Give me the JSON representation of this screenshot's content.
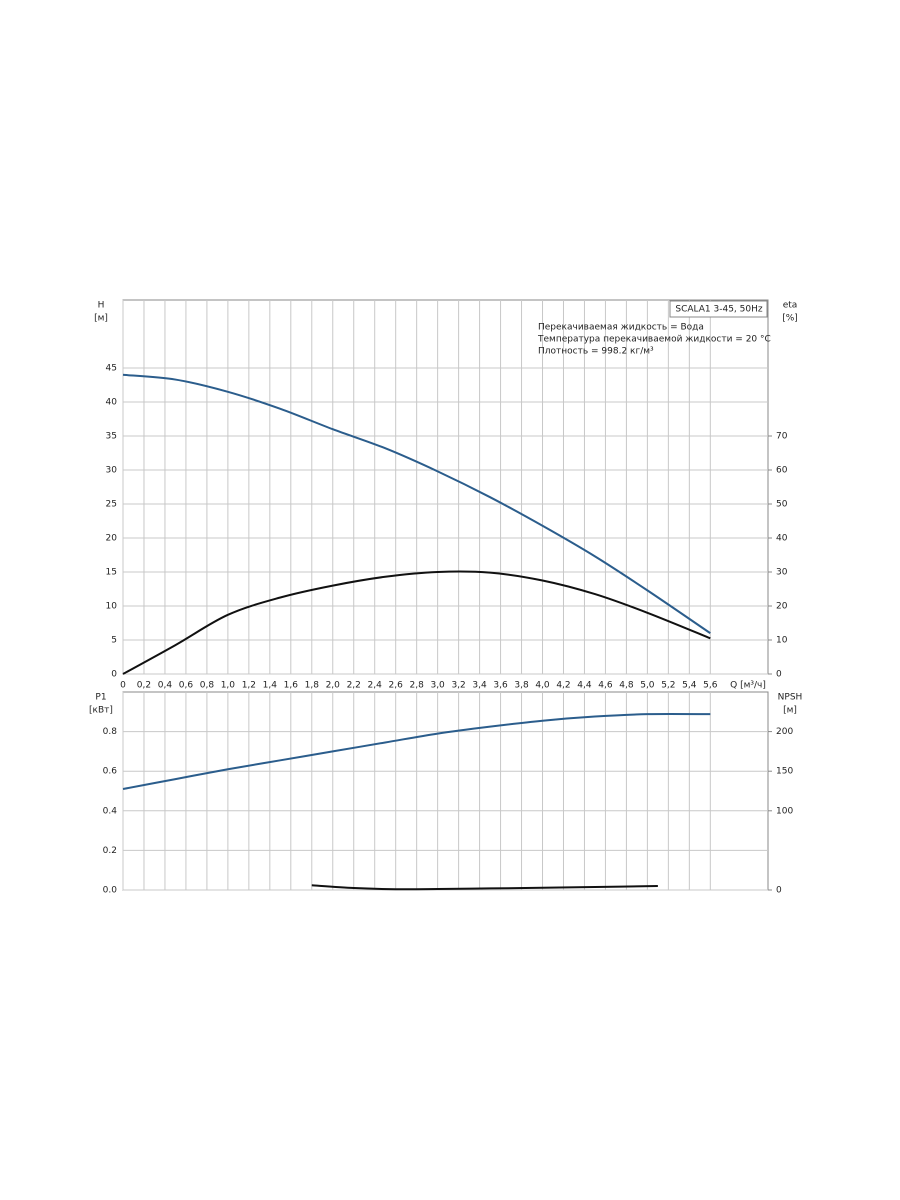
{
  "chart_data": [
    {
      "type": "line",
      "title": "SCALA1 3-45, 50Hz",
      "notes": [
        "Перекачиваемая жидкость = Вода",
        "Температура перекачиваемой жидкости = 20 °C",
        "Плотность = 998.2 кг/м³"
      ],
      "y_label": "H",
      "y_unit": "[м]",
      "y2_label": "eta",
      "y2_unit": "[%]",
      "x_label": "Q [м³/ч]",
      "xlim": [
        0,
        6.15
      ],
      "xticks": [
        0,
        {
          "value": 0.2,
          "label": "0,2"
        },
        {
          "value": 0.4,
          "label": "0,4"
        },
        {
          "value": 0.6,
          "label": "0,6"
        },
        {
          "value": 0.8,
          "label": "0,8"
        },
        {
          "value": 1.0,
          "label": "1,0"
        },
        {
          "value": 1.2,
          "label": "1,2"
        },
        {
          "value": 1.4,
          "label": "1,4"
        },
        {
          "value": 1.6,
          "label": "1,6"
        },
        {
          "value": 1.8,
          "label": "1,8"
        },
        {
          "value": 2.0,
          "label": "2,0"
        },
        {
          "value": 2.2,
          "label": "2,2"
        },
        {
          "value": 2.4,
          "label": "2,4"
        },
        {
          "value": 2.6,
          "label": "2,6"
        },
        {
          "value": 2.8,
          "label": "2,8"
        },
        {
          "value": 3.0,
          "label": "3,0"
        },
        {
          "value": 3.2,
          "label": "3,2"
        },
        {
          "value": 3.4,
          "label": "3,4"
        },
        {
          "value": 3.6,
          "label": "3,6"
        },
        {
          "value": 3.8,
          "label": "3,8"
        },
        {
          "value": 4.0,
          "label": "4,0"
        },
        {
          "value": 4.2,
          "label": "4,2"
        },
        {
          "value": 4.4,
          "label": "4,4"
        },
        {
          "value": 4.6,
          "label": "4,6"
        },
        {
          "value": 4.8,
          "label": "4,8"
        },
        {
          "value": 5.0,
          "label": "5,0"
        },
        {
          "value": 5.2,
          "label": "5,2"
        },
        {
          "value": 5.4,
          "label": "5,4"
        },
        {
          "value": 5.6,
          "label": "5,6"
        }
      ],
      "ylim": [
        0,
        55
      ],
      "yticks": [
        0,
        5,
        10,
        15,
        20,
        25,
        30,
        35,
        40,
        45
      ],
      "y2lim": [
        0,
        110
      ],
      "y2ticks": [
        0,
        10,
        20,
        30,
        40,
        50,
        60,
        70
      ],
      "grid": true,
      "x": [
        0,
        0.5,
        1.0,
        1.5,
        2.0,
        2.5,
        3.0,
        3.5,
        4.0,
        4.5,
        5.0,
        5.6
      ],
      "series": [
        {
          "name": "H",
          "color": "#2b5d8c",
          "values": [
            44,
            43.3,
            41.5,
            39,
            36,
            33.2,
            29.8,
            26,
            21.8,
            17.3,
            12.3,
            6
          ]
        },
        {
          "name": "eta",
          "color": "#111111",
          "axis": "y2",
          "values": [
            0,
            8.5,
            17.4,
            22.5,
            26,
            28.6,
            30,
            29.8,
            27.5,
            23.5,
            18,
            10.5
          ]
        }
      ]
    },
    {
      "type": "line",
      "y_label": "P1",
      "y_unit": "[кВт]",
      "y2_label": "NPSH",
      "y2_unit": "[м]",
      "xlim": [
        0,
        6.15
      ],
      "xticks": [
        0,
        0.2,
        0.4,
        0.6,
        0.8,
        1.0,
        1.2,
        1.4,
        1.6,
        1.8,
        2.0,
        2.2,
        2.4,
        2.6,
        2.8,
        3.0,
        3.2,
        3.4,
        3.6,
        3.8,
        4.0,
        4.2,
        4.4,
        4.6,
        4.8,
        5.0,
        5.2,
        5.4,
        5.6
      ],
      "ylim": [
        0,
        1
      ],
      "yticks": [
        {
          "value": 0,
          "label": "0.0"
        },
        0.2,
        0.4,
        0.6,
        0.8
      ],
      "y2lim": [
        0,
        250
      ],
      "y2ticks": [
        0,
        100,
        150,
        200
      ],
      "grid": true,
      "series": [
        {
          "name": "P1",
          "color": "#2b5d8c",
          "x": [
            0,
            0.5,
            1.0,
            1.5,
            2.0,
            2.5,
            3.0,
            3.5,
            4.0,
            4.5,
            5.0,
            5.6
          ],
          "values": [
            0.51,
            0.56,
            0.61,
            0.655,
            0.7,
            0.745,
            0.79,
            0.825,
            0.855,
            0.876,
            0.888,
            0.888
          ]
        },
        {
          "name": "NPSH",
          "color": "#111111",
          "axis": "y2",
          "x": [
            1.8,
            2.2,
            2.6,
            3.0,
            3.5,
            4.0,
            4.5,
            5.1
          ],
          "values": [
            6,
            2.5,
            1,
            1.2,
            2,
            2.8,
            3.8,
            5
          ]
        }
      ]
    }
  ]
}
